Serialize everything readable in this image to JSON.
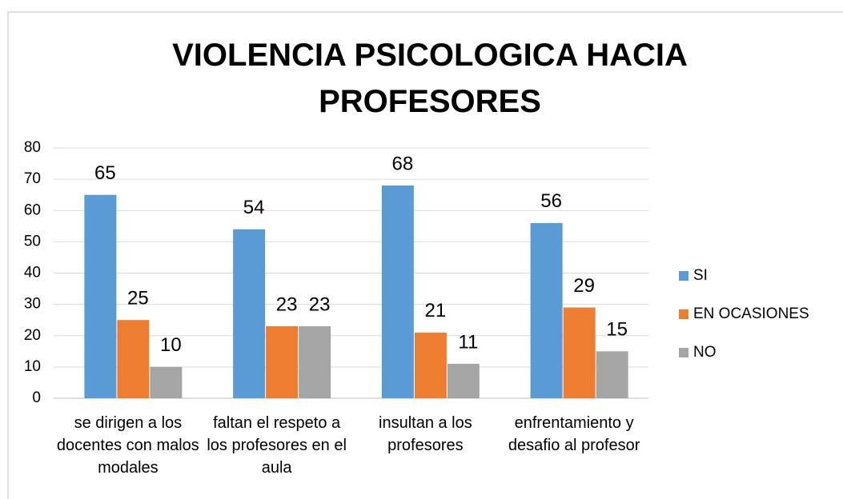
{
  "chart_data": {
    "type": "bar",
    "title": "VIOLENCIA PSICOLOGICA HACIA PROFESORES",
    "categories": [
      "se dirigen a los docentes con malos modales",
      "faltan el respeto a los profesores en el aula",
      "insultan a los profesores",
      "enfrentamiento y desafio al profesor"
    ],
    "series": [
      {
        "name": "SI",
        "color": "#5b9bd5",
        "values": [
          65,
          54,
          68,
          56
        ]
      },
      {
        "name": "EN OCASIONES",
        "color": "#ed7d31",
        "values": [
          25,
          23,
          21,
          29
        ]
      },
      {
        "name": "NO",
        "color": "#a5a5a5",
        "values": [
          10,
          23,
          11,
          15
        ]
      }
    ],
    "ylim": [
      0,
      80
    ],
    "yticks": [
      0,
      10,
      20,
      30,
      40,
      50,
      60,
      70,
      80
    ],
    "grid": true,
    "legend": "right"
  }
}
